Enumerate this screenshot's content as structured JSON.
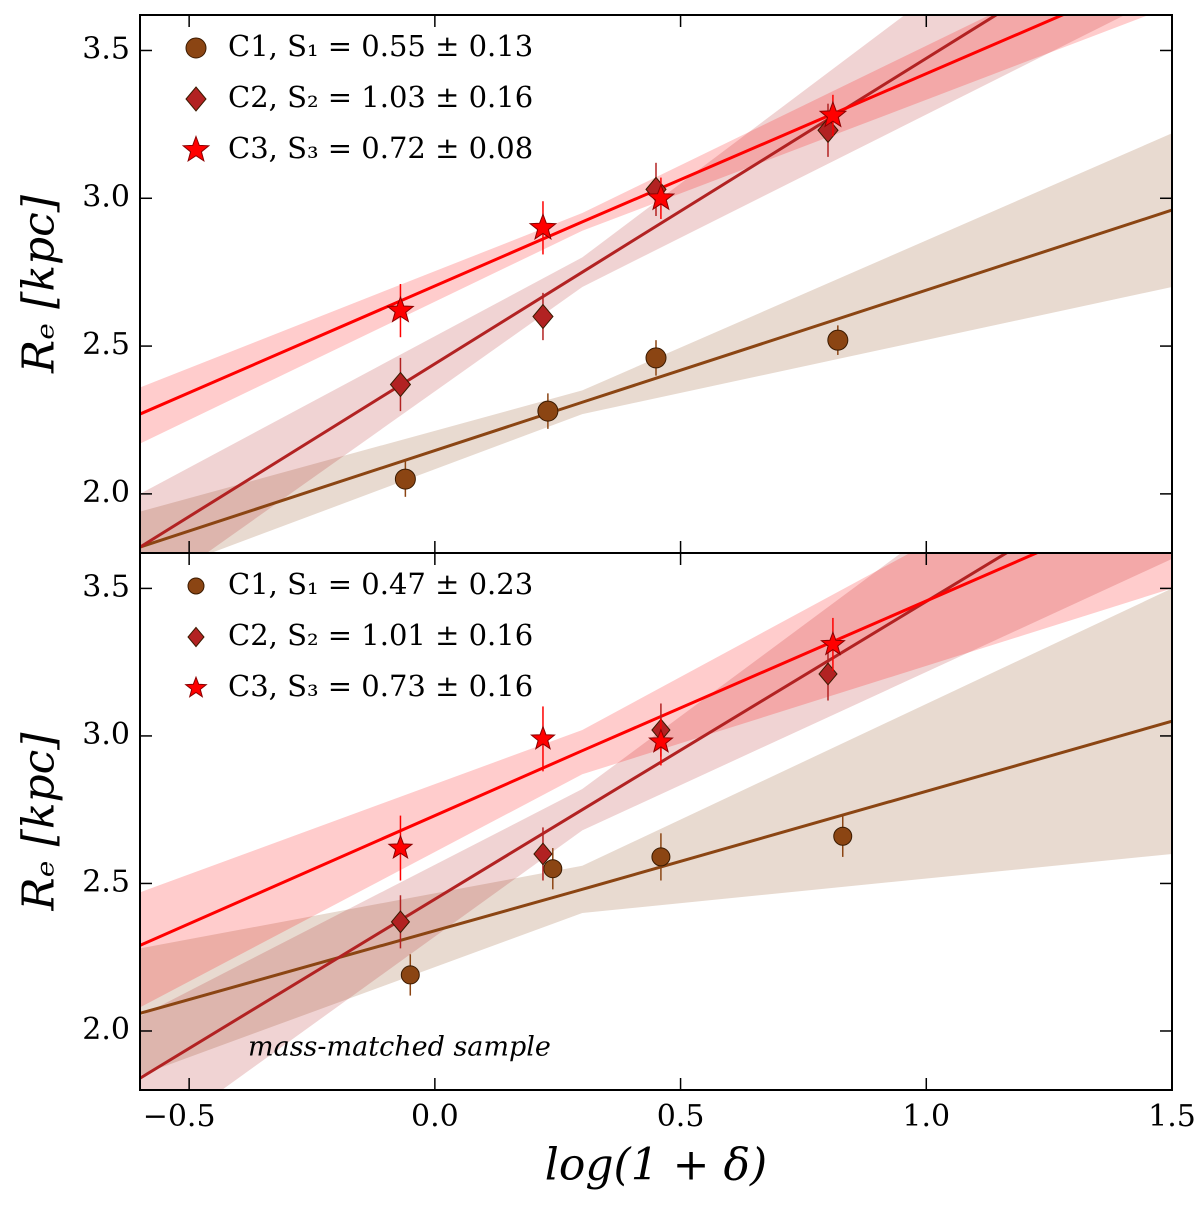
{
  "chart_data": [
    {
      "type": "scatter",
      "ylabel": "Rₑ [kpc]",
      "xlim": [
        -0.6,
        1.5
      ],
      "ylim": [
        1.8,
        3.62
      ],
      "xticks": [
        {
          "value": -0.5,
          "label": "−0.5"
        },
        {
          "value": 0,
          "label": "0.0"
        },
        {
          "value": 0.5,
          "label": "0.5"
        },
        {
          "value": 1,
          "label": "1.0"
        },
        {
          "value": 1.5,
          "label": "1.5"
        }
      ],
      "yticks": [
        {
          "value": 2,
          "label": "2.0"
        },
        {
          "value": 2.5,
          "label": "2.5"
        },
        {
          "value": 3,
          "label": "3.0"
        },
        {
          "value": 3.5,
          "label": "3.5"
        }
      ],
      "legend": "upper left",
      "series": [
        {
          "name": "C1,  S₁ = 0.55 ± 0.13",
          "color": "#8b4513",
          "marker": "circle",
          "x": [
            -0.06,
            0.23,
            0.45,
            0.82
          ],
          "values": [
            2.05,
            2.28,
            2.46,
            2.52
          ],
          "errors": [
            0.06,
            0.06,
            0.06,
            0.05
          ],
          "fit": {
            "x": [
              -0.6,
              0.3,
              1.5
            ],
            "y": [
              1.82,
              2.31,
              2.96
            ],
            "lower": [
              1.71,
              2.27,
              2.7
            ],
            "upper": [
              1.94,
              2.35,
              3.22
            ]
          }
        },
        {
          "name": "C2,  S₂ = 1.03 ± 0.16",
          "color": "#b22222",
          "marker": "diamond",
          "x": [
            -0.07,
            0.22,
            0.45,
            0.8
          ],
          "values": [
            2.37,
            2.6,
            3.03,
            3.23
          ],
          "errors": [
            0.09,
            0.08,
            0.09,
            0.09
          ],
          "fit": {
            "x": [
              -0.6,
              0.3,
              1.5
            ],
            "y": [
              1.82,
              2.75,
              3.99
            ],
            "lower": [
              1.64,
              2.7,
              3.7
            ],
            "upper": [
              2.0,
              2.8,
              4.3
            ]
          }
        },
        {
          "name": "C3,  S₃ = 0.72 ± 0.08",
          "color": "#ff0000",
          "marker": "star",
          "x": [
            -0.07,
            0.22,
            0.46,
            0.81
          ],
          "values": [
            2.62,
            2.9,
            3.0,
            3.28
          ],
          "errors": [
            0.09,
            0.09,
            0.07,
            0.07
          ],
          "fit": {
            "x": [
              -0.6,
              0.3,
              1.5
            ],
            "y": [
              2.27,
              2.92,
              3.78
            ],
            "lower": [
              2.17,
              2.89,
              3.65
            ],
            "upper": [
              2.36,
              2.95,
              3.92
            ]
          }
        }
      ]
    },
    {
      "type": "scatter",
      "xlabel": "log(1 + δ)",
      "ylabel": "Rₑ [kpc]",
      "annotation": "mass-matched sample",
      "xlim": [
        -0.6,
        1.5
      ],
      "ylim": [
        1.8,
        3.62
      ],
      "xticks": [
        {
          "value": -0.5,
          "label": "−0.5"
        },
        {
          "value": 0,
          "label": "0.0"
        },
        {
          "value": 0.5,
          "label": "0.5"
        },
        {
          "value": 1,
          "label": "1.0"
        },
        {
          "value": 1.5,
          "label": "1.5"
        }
      ],
      "yticks": [
        {
          "value": 2,
          "label": "2.0"
        },
        {
          "value": 2.5,
          "label": "2.5"
        },
        {
          "value": 3,
          "label": "3.0"
        },
        {
          "value": 3.5,
          "label": "3.5"
        }
      ],
      "legend": "upper left",
      "series": [
        {
          "name": "C1,  S₁ = 0.47 ± 0.23",
          "color": "#8b4513",
          "marker": "circle",
          "x": [
            -0.05,
            0.24,
            0.46,
            0.83
          ],
          "values": [
            2.19,
            2.55,
            2.59,
            2.66
          ],
          "errors": [
            0.07,
            0.07,
            0.08,
            0.07
          ],
          "fit": {
            "x": [
              -0.6,
              0.3,
              1.5
            ],
            "y": [
              2.06,
              2.48,
              3.05
            ],
            "lower": [
              1.85,
              2.4,
              2.6
            ],
            "upper": [
              2.28,
              2.56,
              3.5
            ]
          }
        },
        {
          "name": "C2,  S₂ = 1.01 ± 0.16",
          "color": "#b22222",
          "marker": "diamond",
          "x": [
            -0.07,
            0.22,
            0.46,
            0.8
          ],
          "values": [
            2.37,
            2.6,
            3.02,
            3.21
          ],
          "errors": [
            0.09,
            0.09,
            0.09,
            0.09
          ],
          "fit": {
            "x": [
              -0.6,
              0.3,
              1.5
            ],
            "y": [
              1.84,
              2.75,
              3.96
            ],
            "lower": [
              1.6,
              2.68,
              3.6
            ],
            "upper": [
              2.05,
              2.82,
              4.3
            ]
          }
        },
        {
          "name": "C3,  S₃ = 0.73 ± 0.16",
          "color": "#ff0000",
          "marker": "star",
          "x": [
            -0.07,
            0.22,
            0.46,
            0.81
          ],
          "values": [
            2.62,
            2.99,
            2.98,
            3.31
          ],
          "errors": [
            0.11,
            0.11,
            0.08,
            0.09
          ],
          "fit": {
            "x": [
              -0.6,
              0.3,
              1.5
            ],
            "y": [
              2.29,
              2.95,
              3.82
            ],
            "lower": [
              2.08,
              2.87,
              3.5
            ],
            "upper": [
              2.47,
              3.02,
              4.1
            ]
          }
        }
      ]
    }
  ]
}
